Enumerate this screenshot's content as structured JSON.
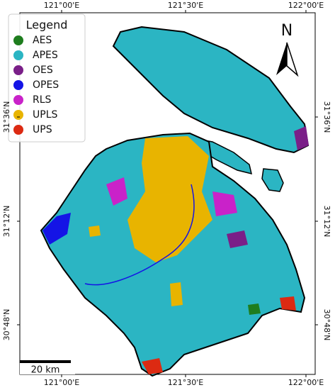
{
  "map": {
    "legend": {
      "title": "Legend",
      "items": [
        {
          "label": "AES",
          "color": "#1e7d1e"
        },
        {
          "label": "APES",
          "color": "#2bb5c3"
        },
        {
          "label": "OES",
          "color": "#7a1f88"
        },
        {
          "label": "OPES",
          "color": "#1414e6"
        },
        {
          "label": "RLS",
          "color": "#c922c9"
        },
        {
          "label": "UPLS",
          "color": "#e8b400"
        },
        {
          "label": "UPS",
          "color": "#dc2a12"
        }
      ]
    },
    "top_labels": [
      "121°00'E",
      "121°30'E",
      "122°00'E"
    ],
    "bottom_labels": [
      "121°00'E",
      "121°30'E",
      "122°00'E"
    ],
    "left_labels": [
      "31°36'N",
      "31°12'N",
      "30°48'N"
    ],
    "right_labels": [
      "31°36'N",
      "31°12'N",
      "30°48'N"
    ],
    "north": "N",
    "scale_bar": "20 km"
  }
}
